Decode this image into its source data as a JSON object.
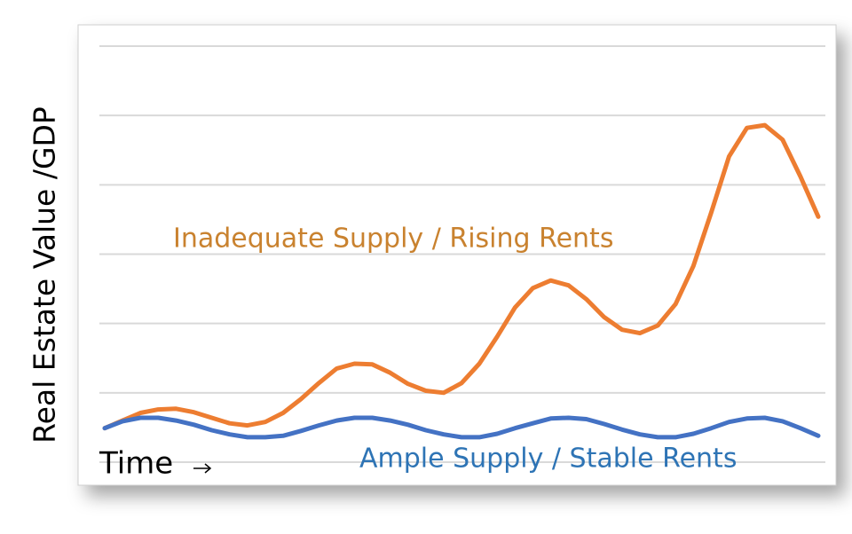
{
  "chart_data": {
    "type": "line",
    "ylabel": "Real Estate Value /GDP",
    "xlabel": "Time",
    "x": [
      0,
      1,
      2,
      3,
      4,
      5,
      6,
      7,
      8,
      9,
      10,
      11,
      12,
      13,
      14,
      15,
      16,
      17,
      18,
      19,
      20,
      21,
      22,
      23,
      24,
      25,
      26,
      27,
      28,
      29,
      30,
      31,
      32,
      33,
      34,
      35,
      36,
      37,
      38,
      39,
      40
    ],
    "xlim": [
      0,
      40
    ],
    "ylim": [
      0,
      6
    ],
    "yticks": [
      0,
      1,
      2,
      3,
      4,
      5,
      6
    ],
    "grid": true,
    "series": [
      {
        "name": "Inadequate Supply / Rising Rents",
        "color": "#ed7d31",
        "values": [
          0.49,
          0.6,
          0.71,
          0.76,
          0.77,
          0.72,
          0.64,
          0.56,
          0.53,
          0.58,
          0.71,
          0.91,
          1.14,
          1.35,
          1.42,
          1.41,
          1.29,
          1.13,
          1.03,
          1.0,
          1.14,
          1.42,
          1.81,
          2.23,
          2.51,
          2.62,
          2.55,
          2.35,
          2.09,
          1.91,
          1.86,
          1.97,
          2.28,
          2.83,
          3.6,
          4.41,
          4.82,
          4.86,
          4.65,
          4.12,
          3.54
        ]
      },
      {
        "name": "Ample Supply / Stable Rents",
        "color": "#4472c4",
        "values": [
          0.49,
          0.59,
          0.64,
          0.64,
          0.6,
          0.54,
          0.46,
          0.4,
          0.36,
          0.36,
          0.38,
          0.45,
          0.53,
          0.6,
          0.64,
          0.64,
          0.6,
          0.54,
          0.46,
          0.4,
          0.36,
          0.36,
          0.41,
          0.49,
          0.56,
          0.63,
          0.64,
          0.62,
          0.55,
          0.47,
          0.4,
          0.36,
          0.36,
          0.41,
          0.49,
          0.58,
          0.63,
          0.64,
          0.59,
          0.49,
          0.38
        ]
      }
    ],
    "annotations": [
      {
        "text": "Inadequate Supply / Rising Rents",
        "color": "#c9822f"
      },
      {
        "text": "Ample Supply / Stable Rents",
        "color": "#2e74b5"
      }
    ]
  }
}
